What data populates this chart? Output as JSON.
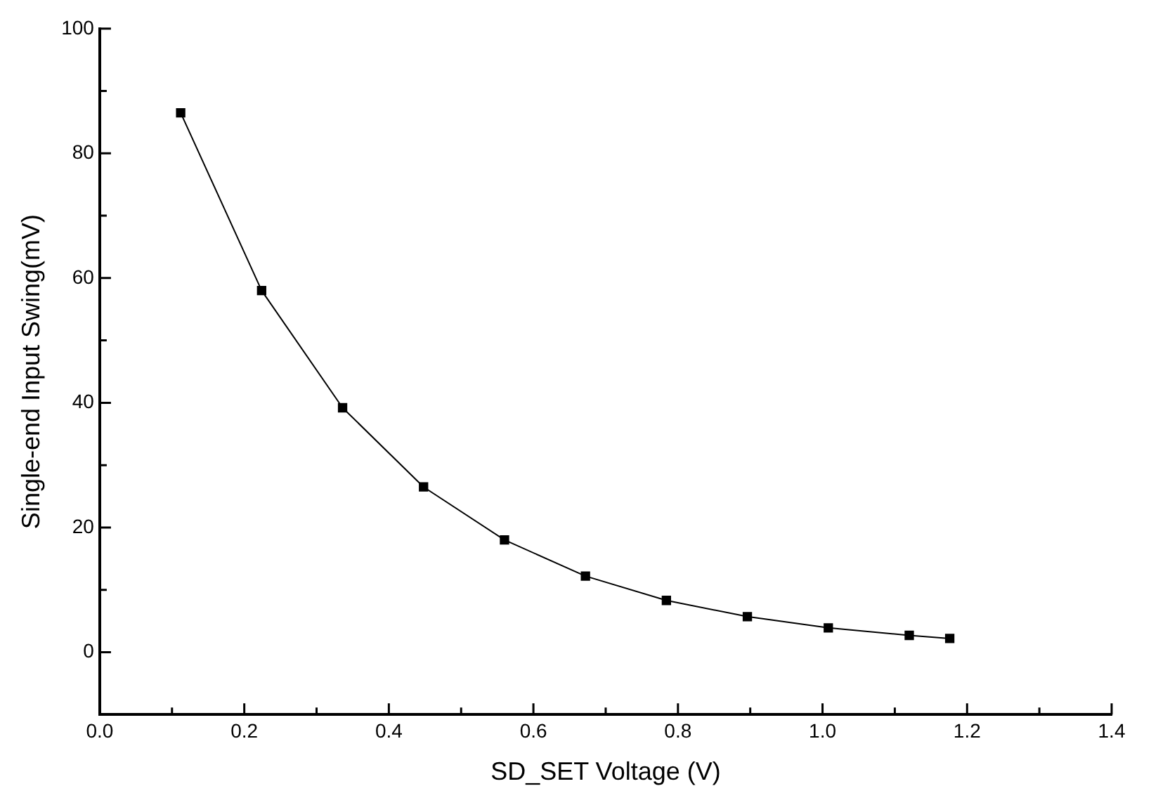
{
  "chart_data": {
    "type": "line",
    "xlabel": "SD_SET Voltage (V)",
    "ylabel": "Single-end Input Swing(mV)",
    "x": [
      0.112,
      0.224,
      0.336,
      0.448,
      0.56,
      0.672,
      0.784,
      0.896,
      1.008,
      1.12,
      1.176
    ],
    "series": [
      {
        "color": "#000000",
        "values": [
          86.5,
          58,
          39.2,
          26.5,
          18,
          12.2,
          8.3,
          5.7,
          3.9,
          2.7,
          2.2
        ]
      }
    ],
    "xlim": [
      0,
      1.4
    ],
    "xticks": [
      {
        "value": 0,
        "label": "0.0"
      },
      0.2,
      0.4,
      0.6,
      0.8,
      {
        "value": 1,
        "label": "1.0"
      },
      1.2,
      1.4
    ],
    "ylim": [
      -10,
      100
    ],
    "yticks": [
      0,
      20,
      40,
      60,
      80,
      100
    ],
    "marker": "square",
    "line_style": "solid",
    "grid": false,
    "legend": false
  }
}
